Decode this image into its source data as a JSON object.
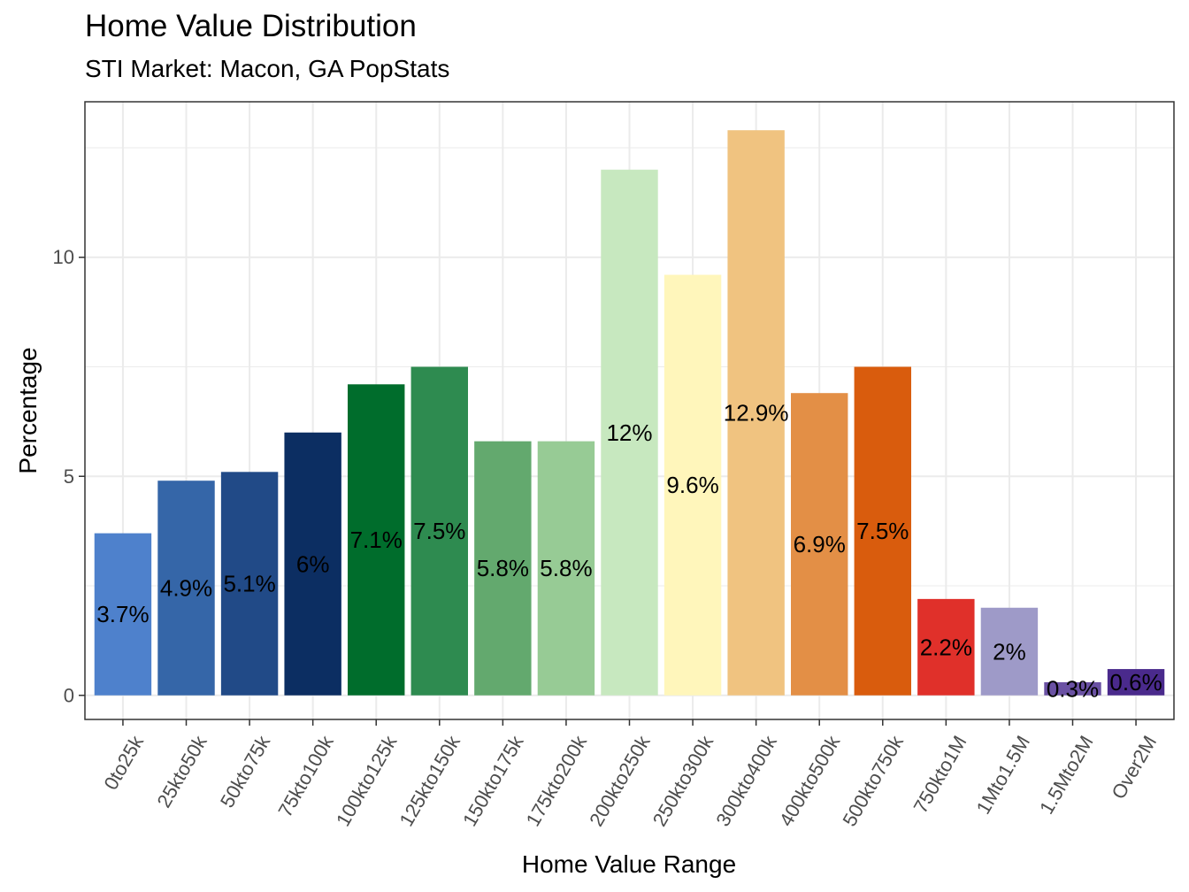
{
  "chart_data": {
    "type": "bar",
    "title": "Home Value Distribution",
    "subtitle": "STI Market: Macon, GA PopStats",
    "xlabel": "Home Value Range",
    "ylabel": "Percentage",
    "ylim": [
      -0.55,
      13.55
    ],
    "yticks": [
      0,
      5,
      10
    ],
    "grid": true,
    "legend": "none",
    "categories": [
      "0to25k",
      "25kto50k",
      "50kto75k",
      "75kto100k",
      "100kto125k",
      "125kto150k",
      "150kto175k",
      "175kto200k",
      "200kto250k",
      "250kto300k",
      "300kto400k",
      "400kto500k",
      "500kto750k",
      "750kto1M",
      "1Mto1.5M",
      "1.5Mto2M",
      "Over2M"
    ],
    "values": [
      3.7,
      4.9,
      5.1,
      6.0,
      7.1,
      7.5,
      5.8,
      5.8,
      12.0,
      9.6,
      12.9,
      6.9,
      7.5,
      2.2,
      2.0,
      0.3,
      0.6
    ],
    "labels": [
      "3.7%",
      "4.9%",
      "5.1%",
      "6%",
      "7.1%",
      "7.5%",
      "5.8%",
      "5.8%",
      "12%",
      "9.6%",
      "12.9%",
      "6.9%",
      "7.5%",
      "2.2%",
      "2%",
      "0.3%",
      "0.6%"
    ],
    "colors": [
      "#4e81cc",
      "#3566a8",
      "#214a87",
      "#0c2e62",
      "#006d2c",
      "#2e8b50",
      "#63a96e",
      "#97cb95",
      "#c7e8bf",
      "#fff6bb",
      "#f0c380",
      "#e38f46",
      "#d95c0d",
      "#e0302a",
      "#9e9ac8",
      "#6a51a3",
      "#4a2a8c"
    ]
  }
}
